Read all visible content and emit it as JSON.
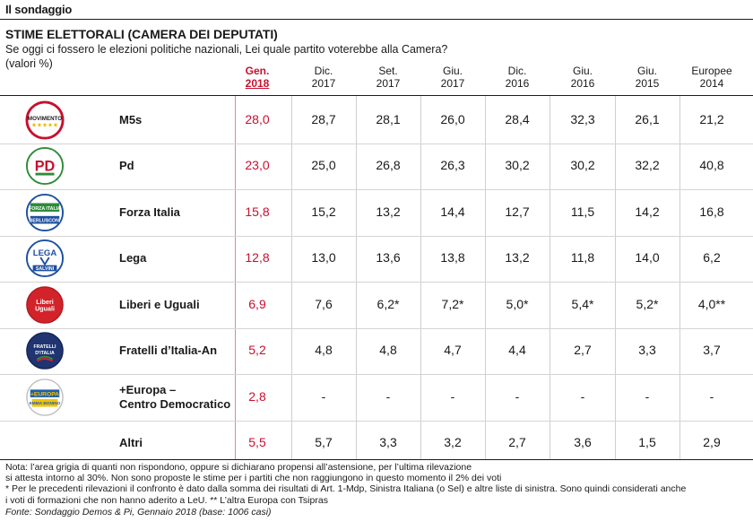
{
  "kicker": "Il sondaggio",
  "chart_data": {
    "type": "table",
    "title": "STIME ELETTORALI (CAMERA DEI DEPUTATI)",
    "subtitle": "Se oggi ci fossero le elezioni politiche nazionali, Lei quale partito voterebbe alla Camera?",
    "unit": "(valori %)",
    "columns": [
      {
        "line1": "Gen.",
        "line2": "2018",
        "current": true
      },
      {
        "line1": "Dic.",
        "line2": "2017"
      },
      {
        "line1": "Set.",
        "line2": "2017"
      },
      {
        "line1": "Giu.",
        "line2": "2017"
      },
      {
        "line1": "Dic.",
        "line2": "2016"
      },
      {
        "line1": "Giu.",
        "line2": "2016"
      },
      {
        "line1": "Giu.",
        "line2": "2015"
      },
      {
        "line1": "Europee",
        "line2": "2014"
      }
    ],
    "rows": [
      {
        "party": "M5s",
        "logo": "movimento-5-stelle-logo",
        "values": [
          "28,0",
          "28,7",
          "28,1",
          "26,0",
          "28,4",
          "32,3",
          "26,1",
          "21,2"
        ]
      },
      {
        "party": "Pd",
        "logo": "partito-democratico-logo",
        "values": [
          "23,0",
          "25,0",
          "26,8",
          "26,3",
          "30,2",
          "30,2",
          "32,2",
          "40,8"
        ]
      },
      {
        "party": "Forza Italia",
        "logo": "forza-italia-logo",
        "values": [
          "15,8",
          "15,2",
          "13,2",
          "14,4",
          "12,7",
          "11,5",
          "14,2",
          "16,8"
        ]
      },
      {
        "party": "Lega",
        "logo": "lega-logo",
        "values": [
          "12,8",
          "13,0",
          "13,6",
          "13,8",
          "13,2",
          "11,8",
          "14,0",
          "6,2"
        ]
      },
      {
        "party": "Liberi e Uguali",
        "logo": "liberi-e-uguali-logo",
        "values": [
          "6,9",
          "7,6",
          "6,2*",
          "7,2*",
          "5,0*",
          "5,4*",
          "5,2*",
          "4,0**"
        ]
      },
      {
        "party": "Fratelli d’Italia-An",
        "logo": "fratelli-d-italia-logo",
        "values": [
          "5,2",
          "4,8",
          "4,8",
          "4,7",
          "4,4",
          "2,7",
          "3,3",
          "3,7"
        ]
      },
      {
        "party": "+Europa –",
        "party2": "Centro Democratico",
        "logo": "piu-europa-logo",
        "values": [
          "2,8",
          "-",
          "-",
          "-",
          "-",
          "-",
          "-",
          "-"
        ]
      },
      {
        "party": "Altri",
        "logo": "",
        "values": [
          "5,5",
          "5,7",
          "3,3",
          "3,2",
          "2,7",
          "3,6",
          "1,5",
          "2,9"
        ]
      }
    ]
  },
  "logos": {
    "m5s_text": "MOVIMENTO",
    "pd_text": "PD",
    "fi_text": "FORZA ITALIA",
    "fi_text2": "BERLUSCONI",
    "lega_text": "LEGA",
    "lega_text2": "SALVINI",
    "leu_text": "Liberi Uguali",
    "fdi_text": "FRATELLI D'ITALIA",
    "europa_text": "EUROPA",
    "europa_text2": "EMMA BONINO"
  },
  "notes": {
    "line1": "Nota: l’area grigia di quanti non rispondono, oppure si dichiarano propensi all’astensione, per l’ultima rilevazione",
    "line2": "si attesta intorno al 30%. Non sono proposte le stime per i partiti che non raggiungono in questo momento il 2% dei voti",
    "line3": "* Per le precedenti rilevazioni il confronto è dato dalla somma dei risultati di Art. 1-Mdp, Sinistra Italiana (o Sel) e altre liste di sinistra. Sono quindi considerati anche",
    "line4": "i voti di formazioni che non hanno aderito a LeU. ** L’altra Europa con Tsipras"
  },
  "source": "Fonte: Sondaggio Demos & Pi, Gennaio 2018 (base: 1006 casi)",
  "colors": {
    "accent": "#c8102e",
    "band": "#ededed"
  }
}
